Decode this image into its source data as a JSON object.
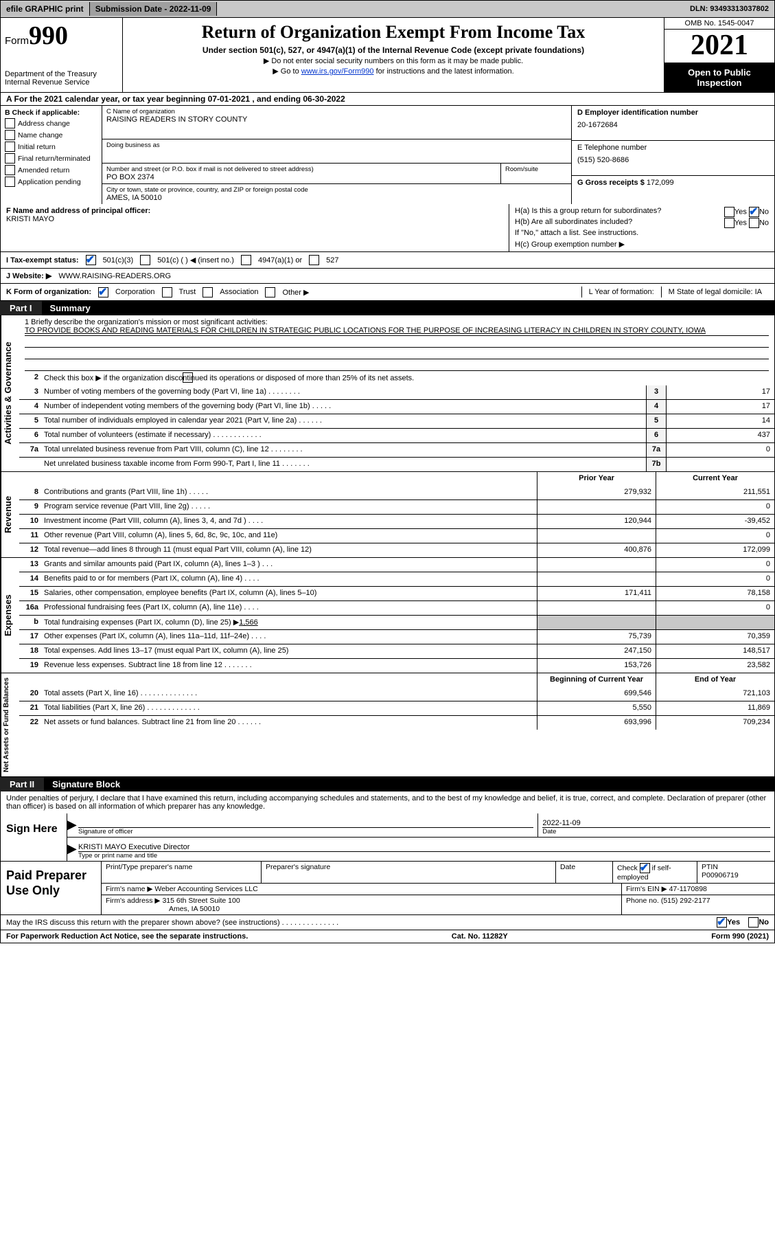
{
  "topbar": {
    "efile": "efile GRAPHIC print",
    "submission": "Submission Date - 2022-11-09",
    "dln": "DLN: 93493313037802"
  },
  "header": {
    "form_word": "Form",
    "form_num": "990",
    "dept": "Department of the Treasury",
    "irs": "Internal Revenue Service",
    "title": "Return of Organization Exempt From Income Tax",
    "sub1": "Under section 501(c), 527, or 4947(a)(1) of the Internal Revenue Code (except private foundations)",
    "sub2a": "▶ Do not enter social security numbers on this form as it may be made public.",
    "sub2b_pre": "▶ Go to ",
    "sub2b_link": "www.irs.gov/Form990",
    "sub2b_post": " for instructions and the latest information.",
    "omb": "OMB No. 1545-0047",
    "year": "2021",
    "inspect": "Open to Public Inspection"
  },
  "rowA": "A For the 2021 calendar year, or tax year beginning 07-01-2021    , and ending 06-30-2022",
  "colB": {
    "title": "B Check if applicable:",
    "items": [
      "Address change",
      "Name change",
      "Initial return",
      "Final return/terminated",
      "Amended return",
      "Application pending"
    ]
  },
  "boxC": {
    "label_name": "C Name of organization",
    "name": "RAISING READERS IN STORY COUNTY",
    "label_dba": "Doing business as",
    "dba": "",
    "label_street": "Number and street (or P.O. box if mail is not delivered to street address)",
    "street": "PO BOX 2374",
    "label_room": "Room/suite",
    "room": "",
    "label_city": "City or town, state or province, country, and ZIP or foreign postal code",
    "city": "AMES, IA  50010"
  },
  "boxD": {
    "label": "D Employer identification number",
    "val": "20-1672684"
  },
  "boxE": {
    "label": "E Telephone number",
    "val": "(515) 520-8686"
  },
  "boxG": {
    "label": "G Gross receipts $",
    "val": "172,099"
  },
  "boxF": {
    "label": "F  Name and address of principal officer:",
    "val": "KRISTI MAYO"
  },
  "boxH": {
    "a": "H(a)  Is this a group return for subordinates?",
    "b": "H(b)  Are all subordinates included?",
    "note": "If \"No,\" attach a list. See instructions.",
    "c": "H(c)  Group exemption number ▶",
    "yes": "Yes",
    "no": "No"
  },
  "rowI": {
    "label": "I   Tax-exempt status:",
    "o1": "501(c)(3)",
    "o2": "501(c) (  ) ◀ (insert no.)",
    "o3": "4947(a)(1) or",
    "o4": "527"
  },
  "rowJ": {
    "label": "J   Website: ▶",
    "val": "WWW.RAISING-READERS.ORG"
  },
  "rowK": {
    "label": "K Form of organization:",
    "opts": [
      "Corporation",
      "Trust",
      "Association",
      "Other ▶"
    ],
    "L": "L Year of formation:",
    "M": "M State of legal domicile: IA"
  },
  "part1": {
    "label": "Part I",
    "title": "Summary",
    "vert_ag": "Activities & Governance",
    "vert_rev": "Revenue",
    "vert_exp": "Expenses",
    "vert_na": "Net Assets or Fund Balances",
    "mission_label": "1   Briefly describe the organization's mission or most significant activities:",
    "mission": "TO PROVIDE BOOKS AND READING MATERIALS FOR CHILDREN IN STRATEGIC PUBLIC LOCATIONS FOR THE PURPOSE OF INCREASING LITERACY IN CHILDREN IN STORY COUNTY, IOWA",
    "line2": "Check this box ▶        if the organization discontinued its operations or disposed of more than 25% of its net assets.",
    "gov": [
      {
        "n": "3",
        "d": "Number of voting members of the governing body (Part VI, line 1a)   .    .    .    .    .    .    .    .",
        "c": "3",
        "v": "17"
      },
      {
        "n": "4",
        "d": "Number of independent voting members of the governing body (Part VI, line 1b)   .    .    .    .    .",
        "c": "4",
        "v": "17"
      },
      {
        "n": "5",
        "d": "Total number of individuals employed in calendar year 2021 (Part V, line 2a)   .    .    .    .    .    .",
        "c": "5",
        "v": "14"
      },
      {
        "n": "6",
        "d": "Total number of volunteers (estimate if necessary)    .    .    .    .    .    .    .    .    .    .    .    .",
        "c": "6",
        "v": "437"
      },
      {
        "n": "7a",
        "d": "Total unrelated business revenue from Part VIII, column (C), line 12   .    .    .    .    .    .    .    .",
        "c": "7a",
        "v": "0"
      },
      {
        "n": "",
        "d": "Net unrelated business taxable income from Form 990-T, Part I, line 11   .    .    .    .    .    .    .",
        "c": "7b",
        "v": ""
      }
    ],
    "head_prior": "Prior Year",
    "head_curr": "Current Year",
    "rev": [
      {
        "n": "8",
        "d": "Contributions and grants (Part VIII, line 1h)   .    .    .    .    .",
        "p": "279,932",
        "c": "211,551"
      },
      {
        "n": "9",
        "d": "Program service revenue (Part VIII, line 2g)   .    .    .    .    .",
        "p": "",
        "c": "0"
      },
      {
        "n": "10",
        "d": "Investment income (Part VIII, column (A), lines 3, 4, and 7d )   .    .    .    .",
        "p": "120,944",
        "c": "-39,452"
      },
      {
        "n": "11",
        "d": "Other revenue (Part VIII, column (A), lines 5, 6d, 8c, 9c, 10c, and 11e)",
        "p": "",
        "c": "0"
      },
      {
        "n": "12",
        "d": "Total revenue—add lines 8 through 11 (must equal Part VIII, column (A), line 12)",
        "p": "400,876",
        "c": "172,099"
      }
    ],
    "exp": [
      {
        "n": "13",
        "d": "Grants and similar amounts paid (Part IX, column (A), lines 1–3 )   .    .    .",
        "p": "",
        "c": "0"
      },
      {
        "n": "14",
        "d": "Benefits paid to or for members (Part IX, column (A), line 4)   .    .    .    .",
        "p": "",
        "c": "0"
      },
      {
        "n": "15",
        "d": "Salaries, other compensation, employee benefits (Part IX, column (A), lines 5–10)",
        "p": "171,411",
        "c": "78,158"
      },
      {
        "n": "16a",
        "d": "Professional fundraising fees (Part IX, column (A), line 11e)   .    .    .    .",
        "p": "",
        "c": "0"
      },
      {
        "n": "b",
        "d": "Total fundraising expenses (Part IX, column (D), line 25) ▶",
        "link": "1,566",
        "p": "SHADE",
        "c": "SHADE"
      },
      {
        "n": "17",
        "d": "Other expenses (Part IX, column (A), lines 11a–11d, 11f–24e)   .    .    .    .",
        "p": "75,739",
        "c": "70,359"
      },
      {
        "n": "18",
        "d": "Total expenses. Add lines 13–17 (must equal Part IX, column (A), line 25)",
        "p": "247,150",
        "c": "148,517"
      },
      {
        "n": "19",
        "d": "Revenue less expenses. Subtract line 18 from line 12   .    .    .    .    .    .    .",
        "p": "153,726",
        "c": "23,582"
      }
    ],
    "na_head_prior": "Beginning of Current Year",
    "na_head_curr": "End of Year",
    "na": [
      {
        "n": "20",
        "d": "Total assets (Part X, line 16)   .    .    .    .    .    .    .    .    .    .    .    .    .    .",
        "p": "699,546",
        "c": "721,103"
      },
      {
        "n": "21",
        "d": "Total liabilities (Part X, line 26)   .    .    .    .    .    .    .    .    .    .    .    .    .",
        "p": "5,550",
        "c": "11,869"
      },
      {
        "n": "22",
        "d": "Net assets or fund balances. Subtract line 21 from line 20   .    .    .    .    .    .",
        "p": "693,996",
        "c": "709,234"
      }
    ]
  },
  "part2": {
    "label": "Part II",
    "title": "Signature Block",
    "decl": "Under penalties of perjury, I declare that I have examined this return, including accompanying schedules and statements, and to the best of my knowledge and belief, it is true, correct, and complete. Declaration of preparer (other than officer) is based on all information of which preparer has any knowledge.",
    "sign_here": "Sign Here",
    "sig_officer_lbl": "Signature of officer",
    "date_val": "2022-11-09",
    "date_lbl": "Date",
    "officer_name": "KRISTI MAYO  Executive Director",
    "officer_lbl": "Type or print name and title"
  },
  "prep": {
    "title": "Paid Preparer Use Only",
    "h_print": "Print/Type preparer's name",
    "h_sig": "Preparer's signature",
    "h_date": "Date",
    "h_check": "Check         if self-employed",
    "h_ptin": "PTIN",
    "ptin": "P00906719",
    "firm_name_lbl": "Firm's name     ▶",
    "firm_name": "Weber Accounting Services LLC",
    "firm_ein_lbl": "Firm's EIN ▶",
    "firm_ein": "47-1170898",
    "firm_addr_lbl": "Firm's address ▶",
    "firm_addr1": "315 6th Street Suite 100",
    "firm_addr2": "Ames, IA  50010",
    "phone_lbl": "Phone no.",
    "phone": "(515) 292-2177"
  },
  "discuss": {
    "text": "May the IRS discuss this return with the preparer shown above? (see instructions)   .    .    .    .    .    .    .    .    .    .    .    .    .    .",
    "yes": "Yes",
    "no": "No"
  },
  "footer": {
    "left": "For Paperwork Reduction Act Notice, see the separate instructions.",
    "mid": "Cat. No. 11282Y",
    "right": "Form 990 (2021)"
  }
}
